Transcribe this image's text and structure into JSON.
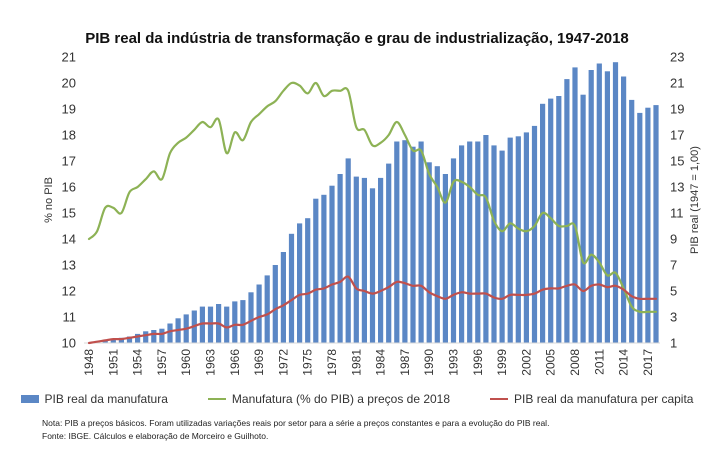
{
  "chart_data": {
    "type": "bar+line",
    "title": "PIB real da indústria de transformação e grau de industrialização, 1947-2018",
    "ylabel_left": "% no PIB",
    "ylabel_right": "PIB real (1947 = 1,00)",
    "ylim_left": [
      10,
      21
    ],
    "yticks_left": [
      10,
      11,
      12,
      13,
      14,
      15,
      16,
      17,
      18,
      19,
      20,
      21
    ],
    "ylim_right": [
      1,
      23
    ],
    "yticks_right": [
      1,
      3,
      5,
      7,
      9,
      11,
      13,
      15,
      17,
      19,
      21,
      23
    ],
    "x": [
      1948,
      1949,
      1950,
      1951,
      1952,
      1953,
      1954,
      1955,
      1956,
      1957,
      1958,
      1959,
      1960,
      1961,
      1962,
      1963,
      1964,
      1965,
      1966,
      1967,
      1968,
      1969,
      1970,
      1971,
      1972,
      1973,
      1974,
      1975,
      1976,
      1977,
      1978,
      1979,
      1980,
      1981,
      1982,
      1983,
      1984,
      1985,
      1986,
      1987,
      1988,
      1989,
      1990,
      1991,
      1992,
      1993,
      1994,
      1995,
      1996,
      1997,
      1998,
      1999,
      2000,
      2001,
      2002,
      2003,
      2004,
      2005,
      2006,
      2007,
      2008,
      2009,
      2010,
      2011,
      2012,
      2013,
      2014,
      2015,
      2016,
      2017,
      2018
    ],
    "xtick_labels": [
      "1948",
      "1951",
      "1954",
      "1957",
      "1960",
      "1963",
      "1966",
      "1969",
      "1972",
      "1975",
      "1978",
      "1981",
      "1984",
      "1987",
      "1990",
      "1993",
      "1996",
      "1999",
      "2002",
      "2005",
      "2008",
      "2011",
      "2014",
      "2017"
    ],
    "grid": false,
    "legend_position": "bottom",
    "series": [
      {
        "name": "PIB real da manufatura",
        "type": "bar",
        "axis": "right",
        "color": "#5b87c5",
        "values": [
          1.0,
          1.1,
          1.2,
          1.3,
          1.4,
          1.5,
          1.7,
          1.9,
          2.0,
          2.1,
          2.5,
          2.9,
          3.2,
          3.5,
          3.8,
          3.8,
          4.0,
          3.8,
          4.2,
          4.3,
          4.9,
          5.5,
          6.2,
          7.0,
          8.0,
          9.4,
          10.2,
          10.6,
          12.1,
          12.4,
          13.1,
          14.0,
          15.2,
          13.8,
          13.7,
          12.9,
          13.7,
          14.8,
          16.5,
          16.6,
          16.1,
          16.5,
          14.9,
          14.6,
          14.0,
          15.2,
          16.2,
          16.5,
          16.5,
          17.0,
          16.2,
          15.8,
          16.8,
          16.9,
          17.2,
          17.7,
          19.4,
          19.8,
          20.0,
          21.3,
          22.2,
          20.1,
          22.0,
          22.5,
          21.9,
          22.6,
          21.5,
          19.7,
          18.7,
          19.1,
          19.3
        ]
      },
      {
        "name": "Manufatura (% do PIB) a preços de 2018",
        "type": "line",
        "axis": "left",
        "color": "#8db255",
        "values": [
          14.0,
          14.3,
          15.2,
          15.2,
          15.0,
          15.8,
          16.0,
          16.3,
          16.6,
          16.3,
          17.3,
          17.7,
          17.9,
          18.2,
          18.5,
          18.3,
          18.6,
          17.3,
          18.1,
          17.8,
          18.5,
          18.8,
          19.1,
          19.3,
          19.7,
          20.0,
          19.9,
          19.6,
          20.0,
          19.5,
          19.7,
          19.7,
          19.7,
          18.3,
          18.2,
          17.6,
          17.7,
          18.0,
          18.5,
          18.0,
          17.4,
          17.4,
          16.5,
          16.0,
          15.4,
          16.2,
          16.2,
          16.0,
          15.7,
          15.6,
          14.7,
          14.3,
          14.6,
          14.4,
          14.3,
          14.5,
          15.0,
          14.8,
          14.5,
          14.5,
          14.5,
          13.1,
          13.4,
          13.1,
          12.6,
          12.7,
          12.1,
          11.4,
          11.2,
          11.2,
          11.2
        ]
      },
      {
        "name": "PIB real da manufatura per capita",
        "type": "line",
        "axis": "right",
        "color": "#c0504d",
        "values": [
          1.0,
          1.1,
          1.2,
          1.3,
          1.3,
          1.4,
          1.5,
          1.6,
          1.7,
          1.7,
          1.9,
          2.0,
          2.1,
          2.3,
          2.5,
          2.5,
          2.5,
          2.2,
          2.4,
          2.4,
          2.7,
          3.0,
          3.2,
          3.6,
          3.9,
          4.3,
          4.7,
          4.8,
          5.1,
          5.2,
          5.5,
          5.7,
          6.1,
          5.2,
          5.0,
          4.8,
          5.0,
          5.3,
          5.7,
          5.6,
          5.4,
          5.4,
          4.9,
          4.6,
          4.4,
          4.7,
          4.9,
          4.8,
          4.8,
          4.8,
          4.5,
          4.4,
          4.7,
          4.7,
          4.7,
          4.8,
          5.1,
          5.2,
          5.2,
          5.4,
          5.5,
          5.0,
          5.4,
          5.5,
          5.3,
          5.4,
          5.1,
          4.6,
          4.4,
          4.4,
          4.4
        ]
      }
    ]
  },
  "legend": [
    {
      "label": "PIB real da manufatura",
      "color": "#5b87c5",
      "kind": "bar"
    },
    {
      "label": "Manufatura (% do PIB) a preços de 2018",
      "color": "#8db255",
      "kind": "line"
    },
    {
      "label": "PIB real da manufatura per capita",
      "color": "#c0504d",
      "kind": "line"
    }
  ],
  "notes": {
    "nota": "Nota: PIB a preços básicos. Foram utilizadas variações reais por setor para a série a preços constantes e para a evolução do PIB real.",
    "fonte": "Fonte: IBGE. Cálculos e elaboração de Morceiro e Guilhoto."
  }
}
